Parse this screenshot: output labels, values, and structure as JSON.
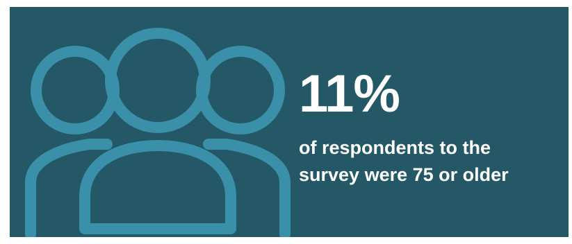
{
  "colors": {
    "panel_background": "#245866",
    "icon_stroke": "#3a8fa9",
    "text": "#ffffff"
  },
  "icon": "people-group-icon",
  "stat": {
    "value": "11%",
    "caption_line1": "of respondents to the",
    "caption_line2": "survey were 75 or older"
  }
}
